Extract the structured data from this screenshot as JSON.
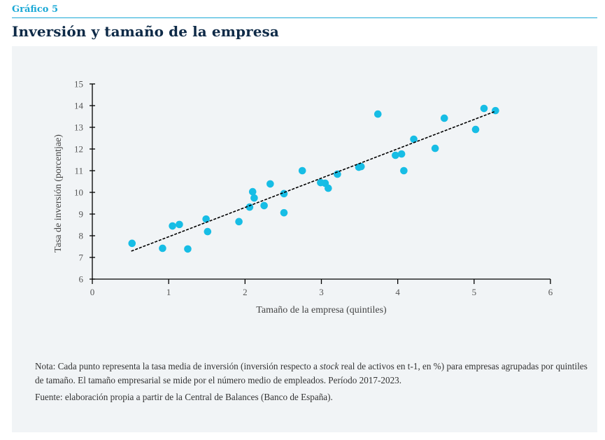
{
  "header": {
    "kicker": "Gráfico 5",
    "title": "Inversión y tamaño de la empresa"
  },
  "colors": {
    "accent": "#1ba9d6",
    "point": "#17bde5",
    "title": "#0e2a47",
    "panel": "#f1f4f6",
    "trendline": "#000000"
  },
  "chart_data": {
    "type": "scatter",
    "title": "Inversión y tamaño de la empresa",
    "xlabel": "Tamaño de la empresa (quintiles)",
    "ylabel": "Tasa de inversión (porcentjae)",
    "xlim": [
      0,
      6
    ],
    "ylim": [
      6,
      15
    ],
    "x_ticks": [
      0,
      1,
      2,
      3,
      4,
      5,
      6
    ],
    "y_ticks": [
      6,
      7,
      8,
      9,
      10,
      11,
      12,
      13,
      14,
      15
    ],
    "grid": false,
    "legend": null,
    "series": [
      {
        "name": "Tasa media de inversión",
        "points": [
          [
            0.52,
            7.65
          ],
          [
            0.92,
            7.42
          ],
          [
            1.05,
            8.45
          ],
          [
            1.14,
            8.52
          ],
          [
            1.25,
            7.39
          ],
          [
            1.49,
            8.77
          ],
          [
            1.51,
            8.19
          ],
          [
            1.92,
            8.65
          ],
          [
            2.06,
            9.32
          ],
          [
            2.1,
            10.03
          ],
          [
            2.12,
            9.74
          ],
          [
            2.25,
            9.39
          ],
          [
            2.33,
            10.39
          ],
          [
            2.51,
            9.94
          ],
          [
            2.51,
            9.06
          ],
          [
            2.75,
            11.0
          ],
          [
            2.99,
            10.45
          ],
          [
            3.05,
            10.42
          ],
          [
            3.09,
            10.19
          ],
          [
            3.21,
            10.84
          ],
          [
            3.49,
            11.16
          ],
          [
            3.52,
            11.19
          ],
          [
            3.74,
            13.61
          ],
          [
            3.97,
            11.71
          ],
          [
            4.05,
            11.77
          ],
          [
            4.08,
            11.0
          ],
          [
            4.21,
            12.45
          ],
          [
            4.49,
            12.03
          ],
          [
            4.61,
            13.42
          ],
          [
            5.02,
            12.9
          ],
          [
            5.13,
            13.87
          ],
          [
            5.28,
            13.77
          ]
        ]
      }
    ],
    "trendline": {
      "type": "linear",
      "style": "dashed",
      "from": [
        0.51,
        7.29
      ],
      "to": [
        5.28,
        13.74
      ]
    }
  },
  "notes": {
    "nota_prefix": "Nota: Cada punto representa la tasa media de inversión (inversión respecto a ",
    "nota_italic": "stock",
    "nota_suffix": " real de activos en t-1, en %) para empresas agrupadas por quintiles de tamaño. El tamaño empresarial se mide por el número medio de empleados. Período 2017-2023.",
    "fuente": "Fuente: elaboración propia a partir de la Central de Balances (Banco de España)."
  }
}
